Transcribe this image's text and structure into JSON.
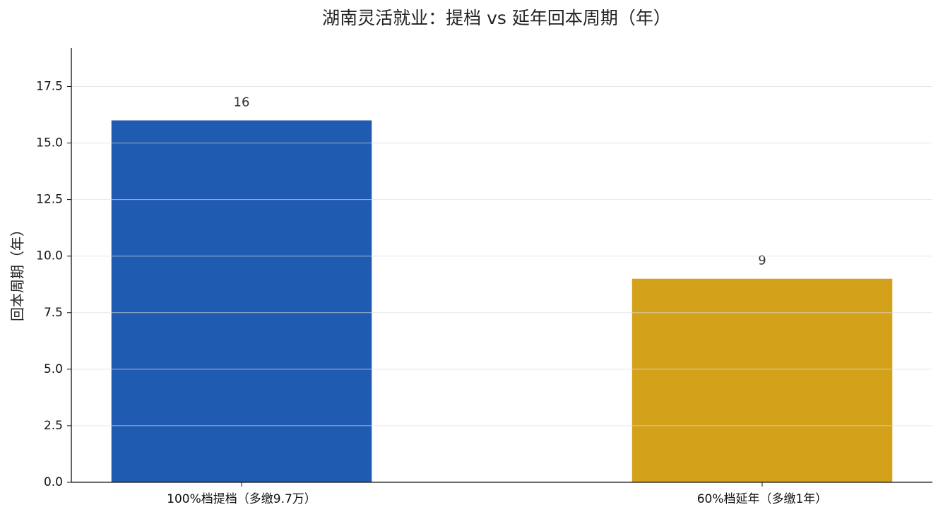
{
  "chart_data": {
    "type": "bar",
    "title": "湖南灵活就业：提档 vs 延年回本周期（年）",
    "y_label": "回本周期（年）",
    "categories": [
      "100%档提档（多缴9.7万）",
      "60%档延年（多缴1年）"
    ],
    "values": [
      16,
      9
    ],
    "colors": [
      "#1f5bb0",
      "#d4a11b"
    ],
    "ylim": [
      0,
      19.2
    ],
    "yticks": [
      {
        "value": 0,
        "label": "0.0"
      },
      {
        "value": 2.5,
        "label": "2.5"
      },
      {
        "value": 5,
        "label": "5.0"
      },
      {
        "value": 7.5,
        "label": "7.5"
      },
      {
        "value": 10,
        "label": "10.0"
      },
      {
        "value": 12.5,
        "label": "12.5"
      },
      {
        "value": 15,
        "label": "15.0"
      },
      {
        "value": 17.5,
        "label": "17.5"
      }
    ],
    "grid": true
  }
}
